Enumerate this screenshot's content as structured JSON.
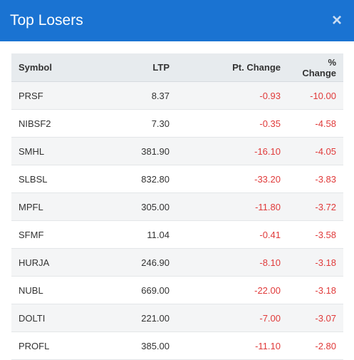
{
  "modal": {
    "title": "Top Losers",
    "close_label": "×"
  },
  "table": {
    "columns": [
      "Symbol",
      "LTP",
      "Pt. Change",
      "% Change"
    ],
    "rows": [
      {
        "symbol": "PRSF",
        "ltp": "8.37",
        "pt_change": "-0.93",
        "pct_change": "-10.00"
      },
      {
        "symbol": "NIBSF2",
        "ltp": "7.30",
        "pt_change": "-0.35",
        "pct_change": "-4.58"
      },
      {
        "symbol": "SMHL",
        "ltp": "381.90",
        "pt_change": "-16.10",
        "pct_change": "-4.05"
      },
      {
        "symbol": "SLBSL",
        "ltp": "832.80",
        "pt_change": "-33.20",
        "pct_change": "-3.83"
      },
      {
        "symbol": "MPFL",
        "ltp": "305.00",
        "pt_change": "-11.80",
        "pct_change": "-3.72"
      },
      {
        "symbol": "SFMF",
        "ltp": "11.04",
        "pt_change": "-0.41",
        "pct_change": "-3.58"
      },
      {
        "symbol": "HURJA",
        "ltp": "246.90",
        "pt_change": "-8.10",
        "pct_change": "-3.18"
      },
      {
        "symbol": "NUBL",
        "ltp": "669.00",
        "pt_change": "-22.00",
        "pct_change": "-3.18"
      },
      {
        "symbol": "DOLTI",
        "ltp": "221.00",
        "pt_change": "-7.00",
        "pct_change": "-3.07"
      },
      {
        "symbol": "PROFL",
        "ltp": "385.00",
        "pt_change": "-11.10",
        "pct_change": "-2.80"
      }
    ]
  },
  "colors": {
    "header_bg": "#1a73d2",
    "negative": "#e03a3a"
  }
}
